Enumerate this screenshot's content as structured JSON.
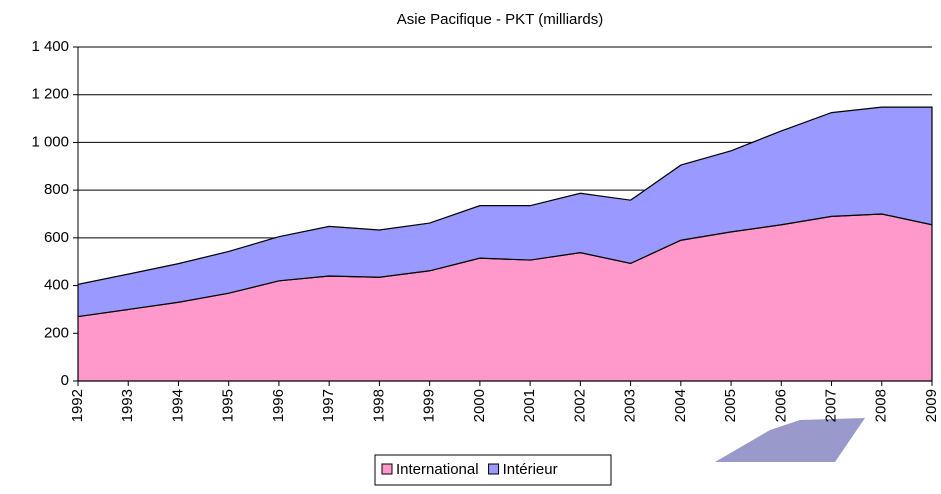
{
  "chart_data": {
    "type": "area",
    "stacked": true,
    "title": "Asie Pacifique - PKT (milliards)",
    "categories": [
      "1992",
      "1993",
      "1994",
      "1995",
      "1996",
      "1997",
      "1998",
      "1999",
      "2000",
      "2001",
      "2002",
      "2003",
      "2004",
      "2005",
      "2006",
      "2007",
      "2008",
      "2009"
    ],
    "series": [
      {
        "name": "International",
        "color": "#ff99cc",
        "values": [
          270,
          300,
          330,
          368,
          420,
          440,
          435,
          462,
          515,
          507,
          538,
          493,
          590,
          625,
          655,
          690,
          700,
          655
        ]
      },
      {
        "name": "Intérieur",
        "color": "#9999ff",
        "values": [
          135,
          148,
          162,
          175,
          185,
          208,
          198,
          200,
          220,
          228,
          249,
          265,
          315,
          340,
          393,
          435,
          448,
          493
        ]
      }
    ],
    "ylim": [
      0,
      1400
    ],
    "yticks": [
      0,
      {
        "value": 200,
        "label": "200"
      },
      {
        "value": 400,
        "label": "400"
      },
      {
        "value": 600,
        "label": "600"
      },
      {
        "value": 800,
        "label": "800"
      },
      {
        "value": 1000,
        "label": "1 000"
      },
      {
        "value": 1200,
        "label": "1 200"
      },
      {
        "value": 1400,
        "label": "1 400"
      }
    ],
    "grid": true,
    "legend": "bottom"
  }
}
